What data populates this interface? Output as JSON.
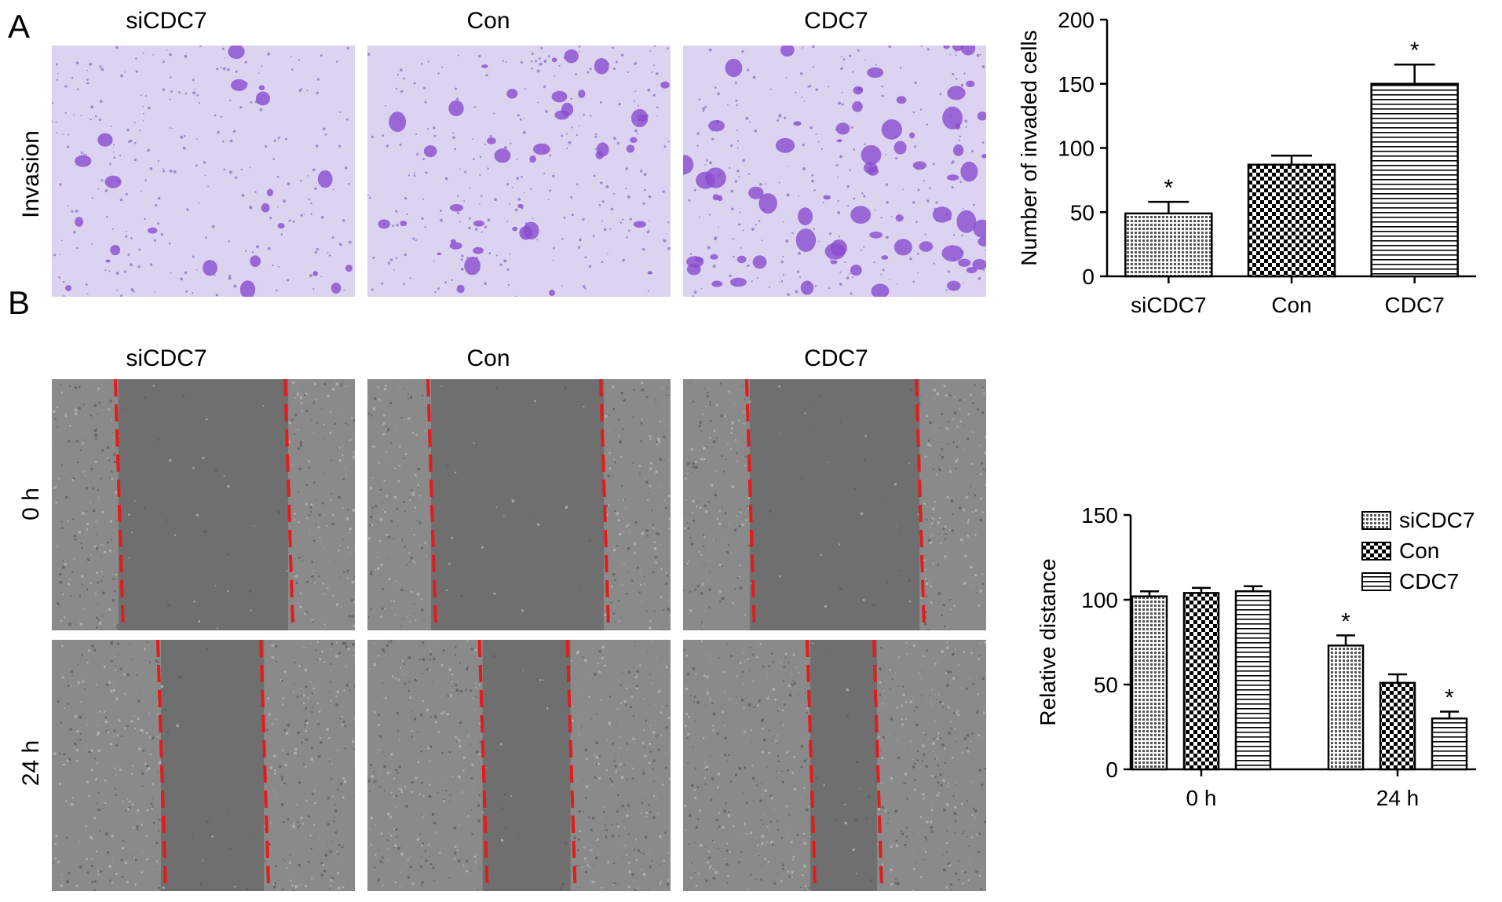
{
  "panelA": {
    "letter": "A",
    "columns": [
      "siCDC7",
      "Con",
      "CDC7"
    ],
    "row_label": "Invasion"
  },
  "panelB": {
    "letter": "B",
    "columns": [
      "siCDC7",
      "Con",
      "CDC7"
    ],
    "row_labels": [
      "0 h",
      "24 h"
    ]
  },
  "colors": {
    "invasion_bg": "#dcd3f1",
    "invasion_stain": "#8a4ccf",
    "wound_bg": "#8a8a8a",
    "wound_gap": "#6f6f6f",
    "wound_line": "#e31b1b"
  },
  "chart_data": [
    {
      "type": "bar",
      "categories": [
        "siCDC7",
        "Con",
        "CDC7"
      ],
      "values": [
        49,
        87,
        150
      ],
      "errors": [
        9,
        7,
        15
      ],
      "significance": [
        "*",
        "",
        "*"
      ],
      "xlabel": "",
      "ylabel": "Number of invaded cells",
      "ylim": [
        0,
        200
      ],
      "yticks": [
        0,
        50,
        100,
        150,
        200
      ],
      "patterns": [
        "dense-dots",
        "checker",
        "horizontal-lines"
      ],
      "grid": false
    },
    {
      "type": "bar",
      "categories": [
        "0 h",
        "24 h"
      ],
      "series": [
        {
          "name": "siCDC7",
          "values": [
            102,
            73
          ],
          "errors": [
            3,
            6
          ],
          "significance": [
            "",
            "*"
          ],
          "pattern": "dense-dots"
        },
        {
          "name": "Con",
          "values": [
            104,
            51
          ],
          "errors": [
            3,
            5
          ],
          "significance": [
            "",
            ""
          ],
          "pattern": "checker"
        },
        {
          "name": "CDC7",
          "values": [
            105,
            30
          ],
          "errors": [
            3,
            4
          ],
          "significance": [
            "",
            "*"
          ],
          "pattern": "horizontal-lines"
        }
      ],
      "xlabel": "",
      "ylabel": "Relative distance",
      "ylim": [
        0,
        150
      ],
      "yticks": [
        0,
        50,
        100,
        150
      ],
      "legend": "top-right",
      "grid": false
    }
  ]
}
